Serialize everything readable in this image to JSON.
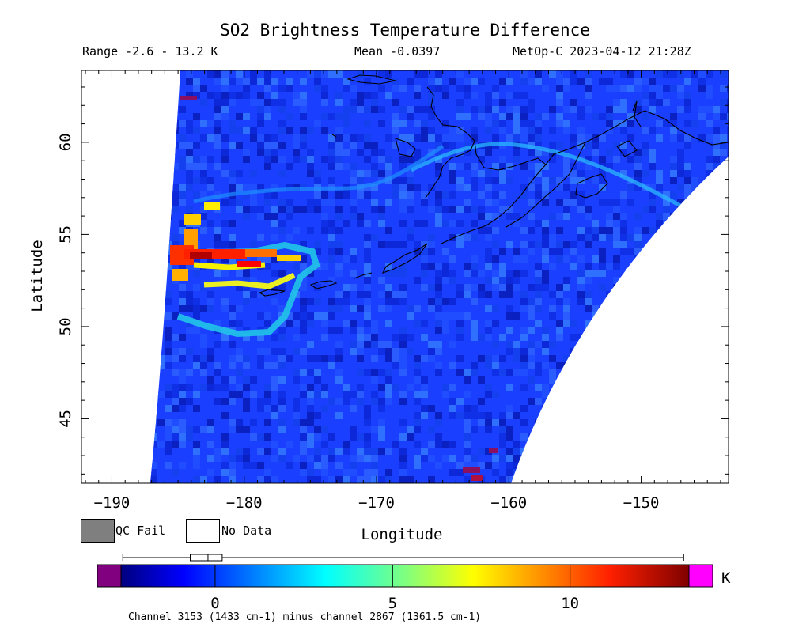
{
  "header": {
    "title": "SO2 Brightness Temperature Difference",
    "range_text": "Range -2.6 - 13.2 K",
    "mean_text": "Mean -0.0397",
    "satellite_text": "MetOp-C 2023-04-12 21:28Z"
  },
  "axes": {
    "xlabel": "Longitude",
    "ylabel": "Latitude",
    "xticks": [
      -190,
      -180,
      -170,
      -160,
      -150
    ],
    "yticks": [
      45,
      50,
      55,
      60
    ],
    "xlim": [
      -192.3,
      -143.4
    ],
    "ylim": [
      41.5,
      63.9
    ]
  },
  "legend": {
    "qc_fail_label": "QC Fail",
    "no_data_label": "No Data",
    "qc_fail_color": "#7f7f7f",
    "no_data_color": "#ffffff"
  },
  "colorbar": {
    "unit": "K",
    "ticks": [
      0,
      5,
      10
    ],
    "vmin": -2.65,
    "vmax": 13.35,
    "under_color": "#800080",
    "over_color": "#ff00ff",
    "colormap": "jet",
    "boxplot": {
      "min": -2.6,
      "q1": -0.7,
      "median": -0.2,
      "q3": 0.2,
      "max": 13.2
    }
  },
  "footnote": "Channel 3153 (1433 cm-1) minus channel 2867 (1361.5 cm-1)"
}
